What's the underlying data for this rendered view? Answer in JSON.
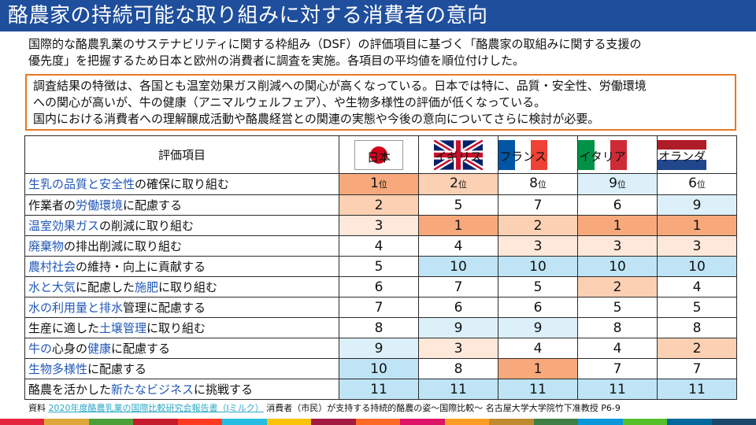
{
  "title": "酪農家の持続可能な取り組みに対する消費者の意向",
  "intro": {
    "line1": "国際的な酪農乳業のサステナビリティに関する枠組み（DSF）の評価項目に基づく「酪農家の取組みに関する支援の",
    "line2": "優先度」を把握するため日本と欧州の消費者に調査を実施。各項目の平均値を順位付けした。"
  },
  "note": {
    "line1": "調査結果の特徴は、各国とも温室効果ガス削減への関心が高くなっている。日本では特に、品質・安全性、労働環境",
    "line2": "への関心が高いが、牛の健康（アニマルウェルフェア）、や生物多様性の評価が低くなっている。",
    "line3": "国内における消費者への理解醸成活動や酪農経営との関連の実態や今後の意向についてさらに検討が必要。"
  },
  "table": {
    "header_item": "評価項目",
    "countries": [
      "日本",
      "イギリス",
      "フランス",
      "イタリア",
      "オランダ"
    ],
    "rank_suffix": "位",
    "rows": [
      {
        "pre": "",
        "hl1": "生乳の品質と安全性",
        "mid": "の確保に取り組む",
        "hl2": "",
        "post": "",
        "ranks": [
          "1",
          "2",
          "8",
          "9",
          "6"
        ]
      },
      {
        "pre": "作業者の",
        "hl1": "労働環境",
        "mid": "に配慮する",
        "hl2": "",
        "post": "",
        "ranks": [
          "2",
          "5",
          "7",
          "6",
          "9"
        ]
      },
      {
        "pre": "",
        "hl1": "温室効果ガス",
        "mid": "の削減に取り組む",
        "hl2": "",
        "post": "",
        "ranks": [
          "3",
          "1",
          "2",
          "1",
          "1"
        ]
      },
      {
        "pre": "",
        "hl1": "廃棄物",
        "mid": "の排出削減に取り組む",
        "hl2": "",
        "post": "",
        "ranks": [
          "4",
          "4",
          "3",
          "3",
          "3"
        ]
      },
      {
        "pre": "",
        "hl1": "農村社会",
        "mid": "の維持・向上に貢献する",
        "hl2": "",
        "post": "",
        "ranks": [
          "5",
          "10",
          "10",
          "10",
          "10"
        ]
      },
      {
        "pre": "",
        "hl1": "水と大気",
        "mid": "に配慮した",
        "hl2": "施肥",
        "post": "に取り組む",
        "ranks": [
          "6",
          "7",
          "5",
          "2",
          "4"
        ]
      },
      {
        "pre": "",
        "hl1": "水の利用量と排水",
        "mid": "管理に配慮する",
        "hl2": "",
        "post": "",
        "ranks": [
          "7",
          "6",
          "6",
          "5",
          "5"
        ]
      },
      {
        "pre": "生産に適した",
        "hl1": "土壌管理",
        "mid": "に取り組む",
        "hl2": "",
        "post": "",
        "ranks": [
          "8",
          "9",
          "9",
          "8",
          "8"
        ]
      },
      {
        "pre": "",
        "hl1": "牛の",
        "mid": "心身の",
        "hl2": "健康",
        "post": "に配慮する",
        "ranks": [
          "9",
          "3",
          "4",
          "4",
          "2"
        ]
      },
      {
        "pre": "",
        "hl1": "生物多様性",
        "mid": "に配慮する",
        "hl2": "",
        "post": "",
        "ranks": [
          "10",
          "8",
          "1",
          "7",
          "7"
        ]
      },
      {
        "pre": "酪農を活かした",
        "hl1": "新たなビジネス",
        "mid": "に挑戦する",
        "hl2": "",
        "post": "",
        "ranks": [
          "11",
          "11",
          "11",
          "11",
          "11"
        ]
      }
    ]
  },
  "source": {
    "label": "資料",
    "link_text": "2020年度酪農乳業の国際比較研究会報告書（Jミルク）",
    "rest": "消費者（市民）が支持する持続的酪農の姿～国際比較～ 名古屋大学大学院竹下准教授 P6-9"
  },
  "colors": {
    "title_bar": "#1f4e9c",
    "highlight_text": "#2258b8",
    "note_border": "#e87722",
    "rank_1_3": [
      "#f8a97b",
      "#fbd0b3",
      "#fde8da"
    ],
    "rank_9_11": [
      "#dcf0fa",
      "#bfe4f6",
      "#bfe4f6"
    ],
    "strip": [
      "#e5233d",
      "#dda73a",
      "#4c9f38",
      "#c5192d",
      "#ff3a21",
      "#26bde2",
      "#fcc30b",
      "#a21942",
      "#fd6925",
      "#dd1367",
      "#fd9d24",
      "#bf8b2e",
      "#3f7e44",
      "#0a97d9",
      "#56c02b",
      "#00689d",
      "#19486a"
    ]
  }
}
